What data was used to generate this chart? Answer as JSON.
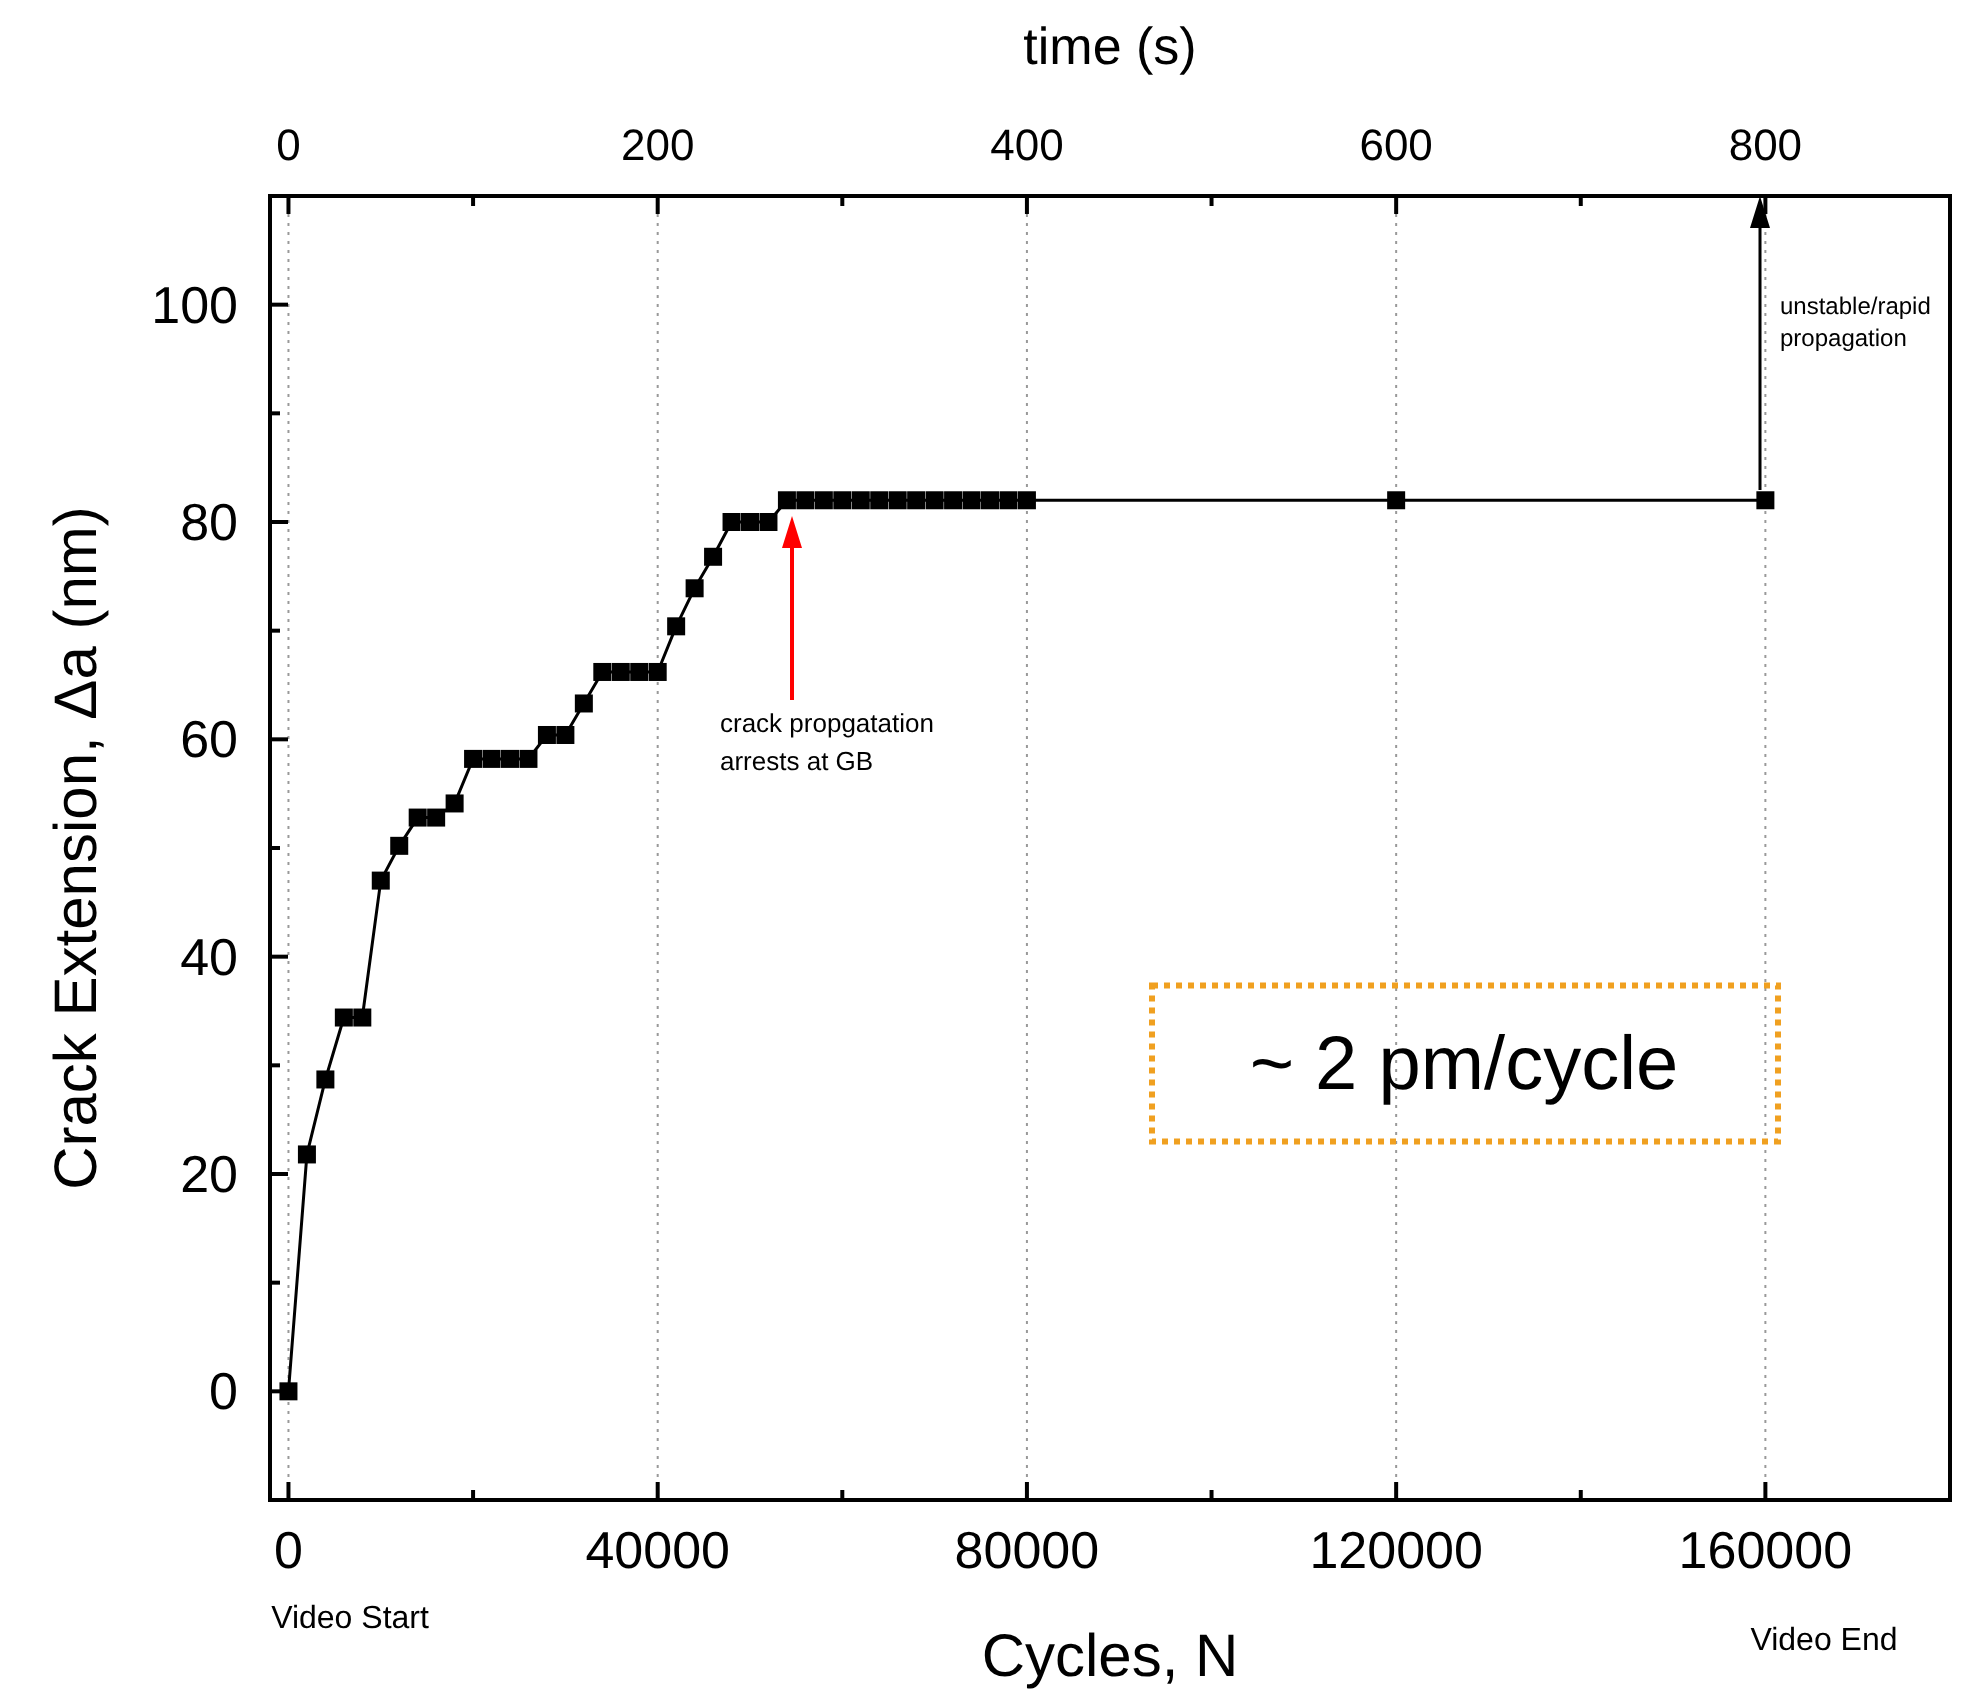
{
  "chart_data": {
    "type": "line",
    "xlabel": "Cycles, N",
    "ylabel": "Crack Extension, Δa (nm)",
    "x2label": "time (s)",
    "x": [
      0,
      2000,
      4000,
      6000,
      8000,
      10000,
      12000,
      14000,
      16000,
      18000,
      20000,
      22000,
      24000,
      26000,
      28000,
      30000,
      32000,
      34000,
      36000,
      38000,
      40000,
      42000,
      44000,
      46000,
      48000,
      50000,
      52000,
      54000,
      56000,
      58000,
      60000,
      62000,
      64000,
      66000,
      68000,
      70000,
      72000,
      74000,
      76000,
      78000,
      80000,
      120000,
      160000
    ],
    "series": [
      {
        "color": "#000000",
        "values": [
          0,
          21.8,
          28.7,
          34.4,
          34.4,
          47,
          50.2,
          52.8,
          52.8,
          54.1,
          58.2,
          58.2,
          58.2,
          58.2,
          60.4,
          60.4,
          63.3,
          66.2,
          66.2,
          66.2,
          66.2,
          70.4,
          73.9,
          76.8,
          80,
          80,
          80,
          82,
          82,
          82,
          82,
          82,
          82,
          82,
          82,
          82,
          82,
          82,
          82,
          82,
          82,
          82,
          82
        ]
      }
    ],
    "marker": "square",
    "line_style": "solid",
    "grid": "x",
    "xlim": [
      -2000,
      180000
    ],
    "xticks": [
      0,
      {
        "value": 20000,
        "label": null
      },
      40000,
      {
        "value": 60000,
        "label": null
      },
      80000,
      {
        "value": 100000,
        "label": null
      },
      120000,
      {
        "value": 140000,
        "label": null
      },
      160000,
      {
        "value": 180000,
        "label": null
      }
    ],
    "x2lim": [
      -10,
      900
    ],
    "x2ticks": [
      0,
      {
        "value": 100,
        "label": null
      },
      200,
      {
        "value": 300,
        "label": null
      },
      400,
      {
        "value": 500,
        "label": null
      },
      600,
      {
        "value": 700,
        "label": null
      },
      800,
      {
        "value": 900,
        "label": null
      }
    ],
    "ylim": [
      -10,
      110
    ],
    "yticks": [
      {
        "value": -10,
        "label": null
      },
      0,
      {
        "value": 10,
        "label": null
      },
      20,
      {
        "value": 30,
        "label": null
      },
      40,
      {
        "value": 50,
        "label": null
      },
      60,
      {
        "value": 70,
        "label": null
      },
      80,
      {
        "value": 90,
        "label": null
      },
      100,
      {
        "value": 110,
        "label": null
      }
    ],
    "annotations": [
      "crack propgatation\narrests at GB",
      "unstable/rapid\npropagation",
      "Video Start",
      "Video End",
      "~ 2 pm/cycle"
    ]
  }
}
